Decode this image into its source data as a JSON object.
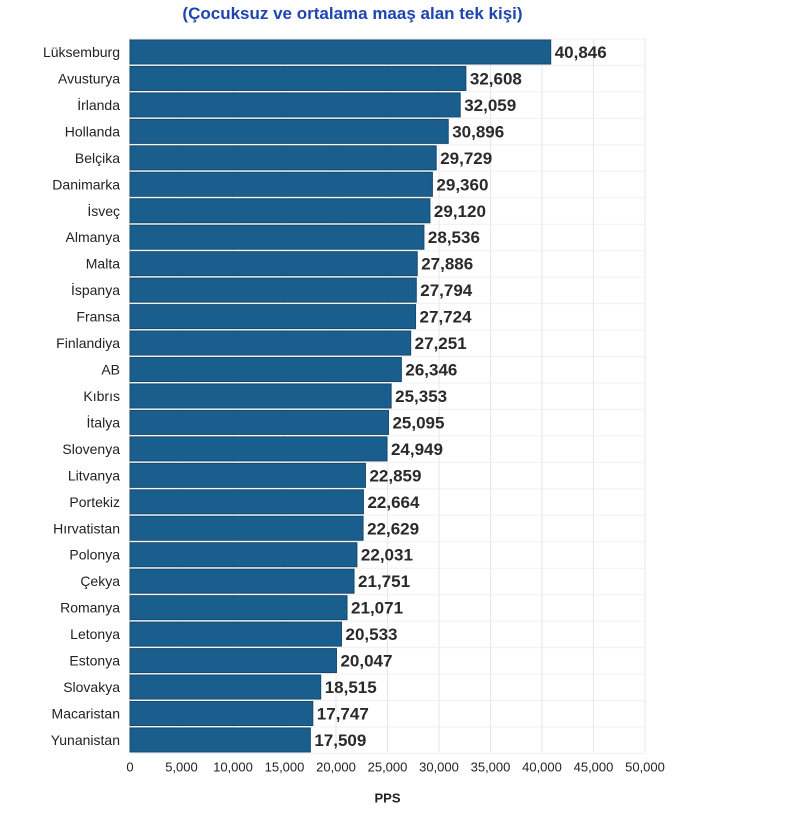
{
  "subtitle": "(Çocuksuz ve ortalama maaş alan tek kişi)",
  "chart_data": {
    "type": "bar",
    "orientation": "horizontal",
    "subtitle": "(Çocuksuz ve ortalama maaş alan tek kişi)",
    "xlabel": "PPS",
    "ylabel": "",
    "xlim": [
      0,
      50000
    ],
    "xticks": [
      0,
      5000,
      10000,
      15000,
      20000,
      25000,
      30000,
      35000,
      40000,
      45000,
      50000
    ],
    "xtick_labels": [
      "0",
      "5,000",
      "10,000",
      "15,000",
      "20,000",
      "25,000",
      "30,000",
      "35,000",
      "40,000",
      "45,000",
      "50,000"
    ],
    "grid": true,
    "bar_color": "#1a5e8e",
    "categories": [
      "Lüksemburg",
      "Avusturya",
      "İrlanda",
      "Hollanda",
      "Belçika",
      "Danimarka",
      "İsveç",
      "Almanya",
      "Malta",
      "İspanya",
      "Fransa",
      "Finlandiya",
      "AB",
      "Kıbrıs",
      "İtalya",
      "Slovenya",
      "Litvanya",
      "Portekiz",
      "Hırvatistan",
      "Polonya",
      "Çekya",
      "Romanya",
      "Letonya",
      "Estonya",
      "Slovakya",
      "Macaristan",
      "Yunanistan"
    ],
    "values": [
      40846,
      32608,
      32059,
      30896,
      29729,
      29360,
      29120,
      28536,
      27886,
      27794,
      27724,
      27251,
      26346,
      25353,
      25095,
      24949,
      22859,
      22664,
      22629,
      22031,
      21751,
      21071,
      20533,
      20047,
      18515,
      17747,
      17509
    ],
    "data_labels": [
      "40,846",
      "32,608",
      "32,059",
      "30,896",
      "29,729",
      "29,360",
      "29,120",
      "28,536",
      "27,886",
      "27,794",
      "27,724",
      "27,251",
      "26,346",
      "25,353",
      "25,095",
      "24,949",
      "22,859",
      "22,664",
      "22,629",
      "22,031",
      "21,751",
      "21,071",
      "20,533",
      "20,047",
      "18,515",
      "17,747",
      "17,509"
    ]
  }
}
